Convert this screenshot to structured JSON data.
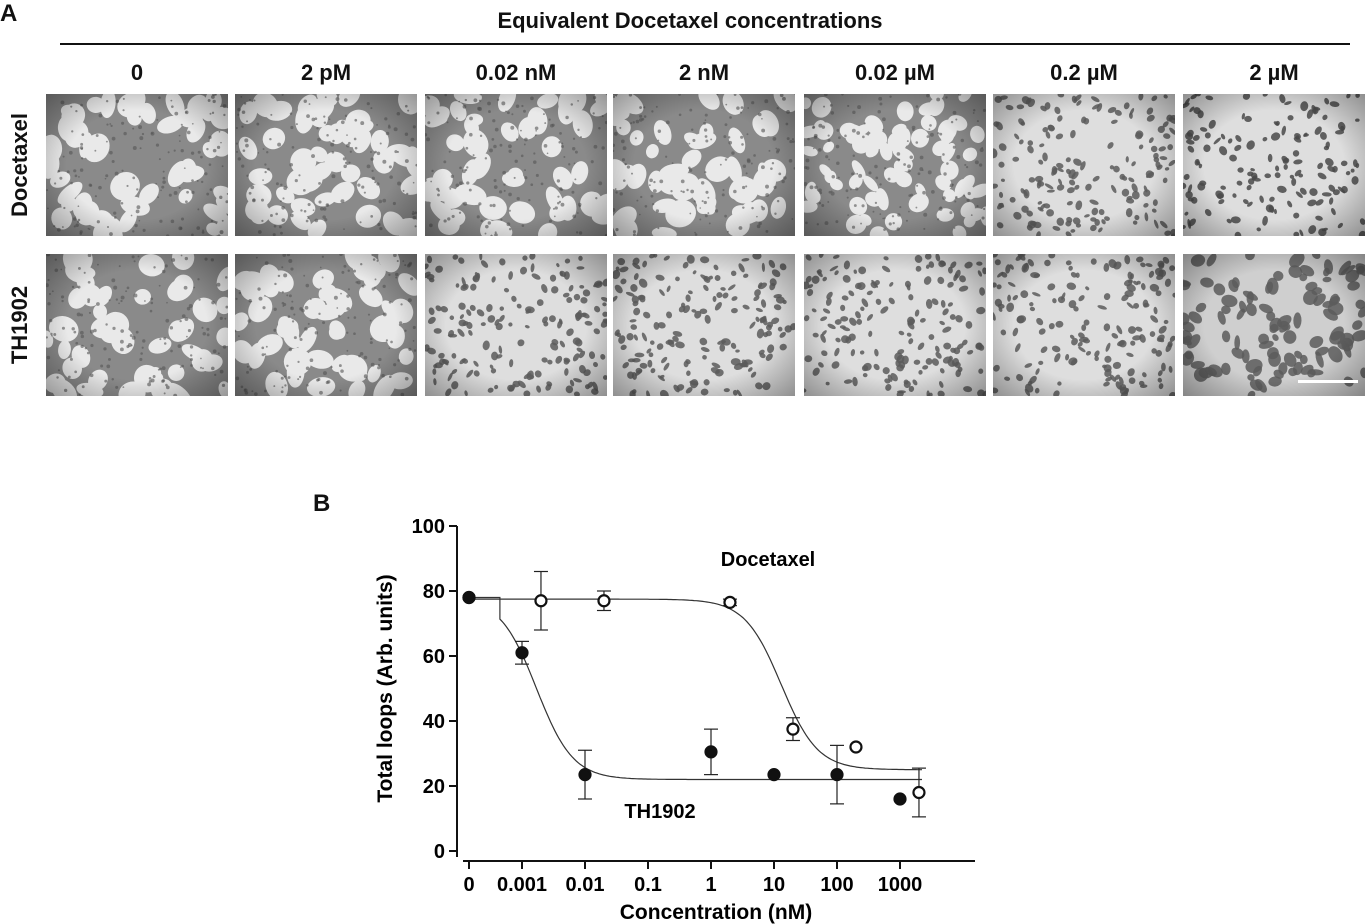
{
  "panel_a": {
    "label": "A",
    "header": "Equivalent Docetaxel concentrations",
    "columns": [
      "0",
      "2 pM",
      "0.02 nM",
      "2 nM",
      "0.02 µM",
      "0.2 µM",
      "2 µM"
    ],
    "rows": [
      "Docetaxel",
      "TH1902"
    ],
    "pattern_by_row": [
      [
        "loops",
        "loops",
        "loops",
        "loops",
        "loops-broken",
        "spots",
        "spots-dark"
      ],
      [
        "loops",
        "loops",
        "spots",
        "spots",
        "spots",
        "spots",
        "spots-large"
      ]
    ]
  },
  "panel_b": {
    "label": "B"
  },
  "chart_data": {
    "type": "scatter",
    "ylabel": "Total loops (Arb. units)",
    "xlabel": "Concentration (nM)",
    "x_scale": "log",
    "x_ticks": [
      "0",
      "0.001",
      "0.01",
      "0.1",
      "1",
      "10",
      "100",
      "1000"
    ],
    "y_ticks": [
      "0",
      "20",
      "40",
      "60",
      "80",
      "100"
    ],
    "ylim": [
      0,
      100
    ],
    "series": [
      {
        "name": "Docetaxel",
        "marker": "open-circle",
        "points": [
          {
            "x": 0,
            "y": 78,
            "err": 0
          },
          {
            "x": 0.002,
            "y": 77,
            "err": 9
          },
          {
            "x": 0.02,
            "y": 77,
            "err": 3
          },
          {
            "x": 2,
            "y": 76.5,
            "err": 1
          },
          {
            "x": 20,
            "y": 37.5,
            "err": 3.5
          },
          {
            "x": 200,
            "y": 32,
            "err": 0
          },
          {
            "x": 2000,
            "y": 18,
            "err": 7.5
          }
        ],
        "fit": {
          "top": 77.5,
          "bottom": 25,
          "ec50": 13,
          "hill": 1.5
        }
      },
      {
        "name": "TH1902",
        "marker": "filled-circle",
        "points": [
          {
            "x": 0,
            "y": 78,
            "err": 0
          },
          {
            "x": 0.001,
            "y": 61,
            "err": 3.5
          },
          {
            "x": 0.01,
            "y": 23.5,
            "err": 7.5
          },
          {
            "x": 1,
            "y": 30.5,
            "err": 7
          },
          {
            "x": 10,
            "y": 23.5,
            "err": 0
          },
          {
            "x": 100,
            "y": 23.5,
            "err": 9
          },
          {
            "x": 1000,
            "y": 16,
            "err": 0
          }
        ],
        "fit": {
          "top": 78,
          "bottom": 22,
          "ec50": 0.0017,
          "hill": 1.5
        }
      }
    ]
  }
}
